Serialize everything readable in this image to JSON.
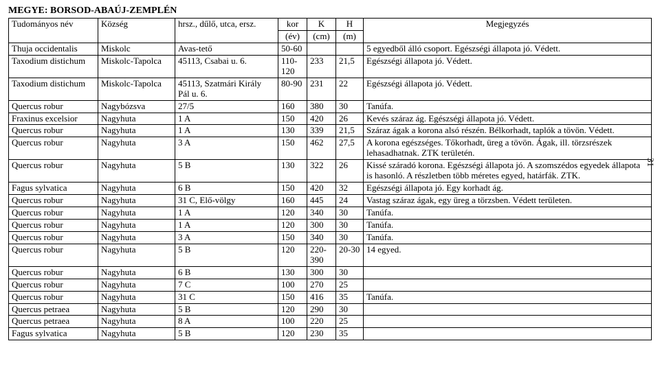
{
  "header": "MEGYE: BORSOD-ABAÚJ-ZEMPLÉN",
  "page_number": "31",
  "columns": {
    "c1a": "Tudományos név",
    "c2a": "Község",
    "c3a": "hrsz., dűlő, utca, ersz.",
    "c4a": "kor",
    "c4b": "(év)",
    "c5a": "K",
    "c5b": "(cm)",
    "c6a": "H",
    "c6b": "(m)",
    "c7a": "Megjegyzés"
  },
  "rows": [
    {
      "c1": "Thuja occidentalis",
      "c2": "Miskolc",
      "c3": "Avas-tető",
      "c4": "50-60",
      "c5": "",
      "c6": "",
      "c7": "5 egyedből álló csoport. Egészségi állapota jó. Védett."
    },
    {
      "c1": "Taxodium distichum",
      "c2": "Miskolc-Tapolca",
      "c3": "45113, Csabai u. 6.",
      "c4": "110-120",
      "c5": "233",
      "c6": "21,5",
      "c7": "Egészségi állapota jó. Védett."
    },
    {
      "c1": "Taxodium distichum",
      "c2": "Miskolc-Tapolca",
      "c3": "45113, Szatmári Király Pál u. 6.",
      "c4": "80-90",
      "c5": "231",
      "c6": "22",
      "c7": "Egészségi állapota jó. Védett."
    },
    {
      "c1": "Quercus robur",
      "c2": "Nagybózsva",
      "c3": "27/5",
      "c4": "160",
      "c5": "380",
      "c6": "30",
      "c7": "Tanúfa."
    },
    {
      "c1": "Fraxinus excelsior",
      "c2": "Nagyhuta",
      "c3": "1 A",
      "c4": "150",
      "c5": "420",
      "c6": "26",
      "c7": "Kevés száraz ág. Egészségi állapota jó. Védett."
    },
    {
      "c1": "Quercus robur",
      "c2": "Nagyhuta",
      "c3": "1 A",
      "c4": "130",
      "c5": "339",
      "c6": "21,5",
      "c7": "Száraz ágak a korona alsó részén. Bélkorhadt, taplók a tövön. Védett."
    },
    {
      "c1": "Quercus robur",
      "c2": "Nagyhuta",
      "c3": "3 A",
      "c4": "150",
      "c5": "462",
      "c6": "27,5",
      "c7": "A korona egészséges. Tőkorhadt, üreg a tövön. Ágak, ill. törzsrészek lehasadhatnak. ZTK területén."
    },
    {
      "c1": "Quercus robur",
      "c2": "Nagyhuta",
      "c3": "5 B",
      "c4": "130",
      "c5": "322",
      "c6": "26",
      "c7": "Kissé száradó korona. Egészségi állapota jó. A szomszédos egyedek állapota is hasonló. A részletben több méretes egyed, határfák. ZTK."
    },
    {
      "c1": "Fagus sylvatica",
      "c2": "Nagyhuta",
      "c3": "6 B",
      "c4": "150",
      "c5": "420",
      "c6": "32",
      "c7": "Egészségi állapota jó. Egy korhadt ág."
    },
    {
      "c1": "Quercus robur",
      "c2": "Nagyhuta",
      "c3": "31 C, Elő-völgy",
      "c4": "160",
      "c5": "445",
      "c6": "24",
      "c7": "Vastag száraz ágak, egy üreg a törzsben. Védett területen."
    },
    {
      "c1": "Quercus robur",
      "c2": "Nagyhuta",
      "c3": "1 A",
      "c4": "120",
      "c5": "340",
      "c6": "30",
      "c7": "Tanúfa."
    },
    {
      "c1": "Quercus robur",
      "c2": "Nagyhuta",
      "c3": "1 A",
      "c4": "120",
      "c5": "300",
      "c6": "30",
      "c7": "Tanúfa."
    },
    {
      "c1": "Quercus robur",
      "c2": "Nagyhuta",
      "c3": "3 A",
      "c4": "150",
      "c5": "340",
      "c6": "30",
      "c7": "Tanúfa."
    },
    {
      "c1": "Quercus robur",
      "c2": "Nagyhuta",
      "c3": "5 B",
      "c4": "120",
      "c5": "220-390",
      "c6": "20-30",
      "c7": "14 egyed."
    },
    {
      "c1": "Quercus robur",
      "c2": "Nagyhuta",
      "c3": "6 B",
      "c4": "130",
      "c5": "300",
      "c6": "30",
      "c7": ""
    },
    {
      "c1": "Quercus robur",
      "c2": "Nagyhuta",
      "c3": "7 C",
      "c4": "100",
      "c5": "270",
      "c6": "25",
      "c7": ""
    },
    {
      "c1": "Quercus robur",
      "c2": "Nagyhuta",
      "c3": "31 C",
      "c4": "150",
      "c5": "416",
      "c6": "35",
      "c7": "Tanúfa."
    },
    {
      "c1": "Quercus petraea",
      "c2": "Nagyhuta",
      "c3": "5 B",
      "c4": "120",
      "c5": "290",
      "c6": "30",
      "c7": ""
    },
    {
      "c1": "Quercus petraea",
      "c2": "Nagyhuta",
      "c3": "8 A",
      "c4": "100",
      "c5": "220",
      "c6": "25",
      "c7": ""
    },
    {
      "c1": "Fagus sylvatica",
      "c2": "Nagyhuta",
      "c3": "5 B",
      "c4": "120",
      "c5": "230",
      "c6": "35",
      "c7": ""
    }
  ]
}
